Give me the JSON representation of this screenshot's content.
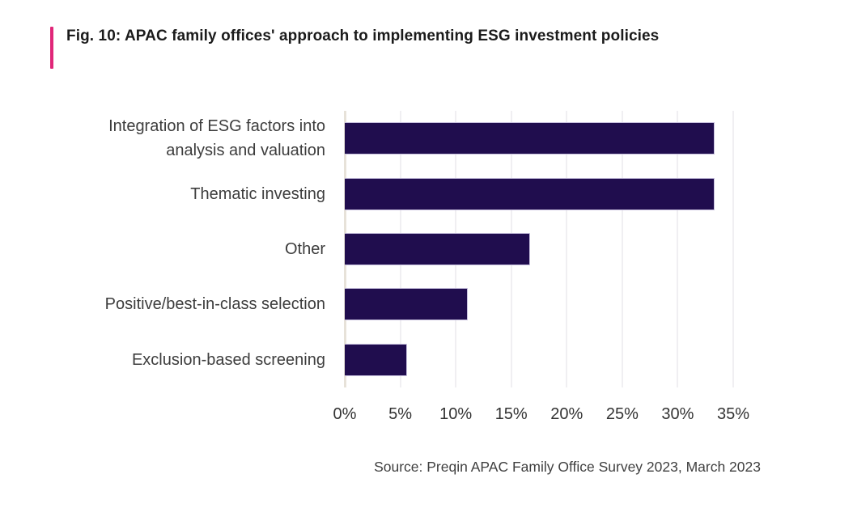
{
  "figure": {
    "title": "Fig. 10: APAC family offices' approach to implementing ESG investment policies",
    "source": "Source: Preqin APAC Family Office Survey 2023, March 2023",
    "accent_color": "#e02779"
  },
  "chart_data": {
    "type": "bar",
    "orientation": "horizontal",
    "title": "Fig. 10: APAC family offices' approach to implementing ESG investment policies",
    "categories": [
      "Integration of ESG factors into analysis and valuation",
      "Thematic investing",
      "Other",
      "Positive/best-in-class selection",
      "Exclusion-based screening"
    ],
    "values": [
      33.3,
      33.3,
      16.7,
      11.1,
      5.6
    ],
    "unit": "%",
    "xlabel": "",
    "ylabel": "",
    "xlim": [
      0,
      35
    ],
    "xticks": [
      "0%",
      "5%",
      "10%",
      "15%",
      "20%",
      "25%",
      "30%",
      "35%"
    ],
    "grid": true,
    "legend": false,
    "bar_color": "#200d4e",
    "bar_edge_color": "#c7c0de",
    "axis_line_color": "#e7e2d9",
    "gridline_color": "#f0eff2",
    "source": "Source: Preqin APAC Family Office Survey 2023, March 2023"
  }
}
